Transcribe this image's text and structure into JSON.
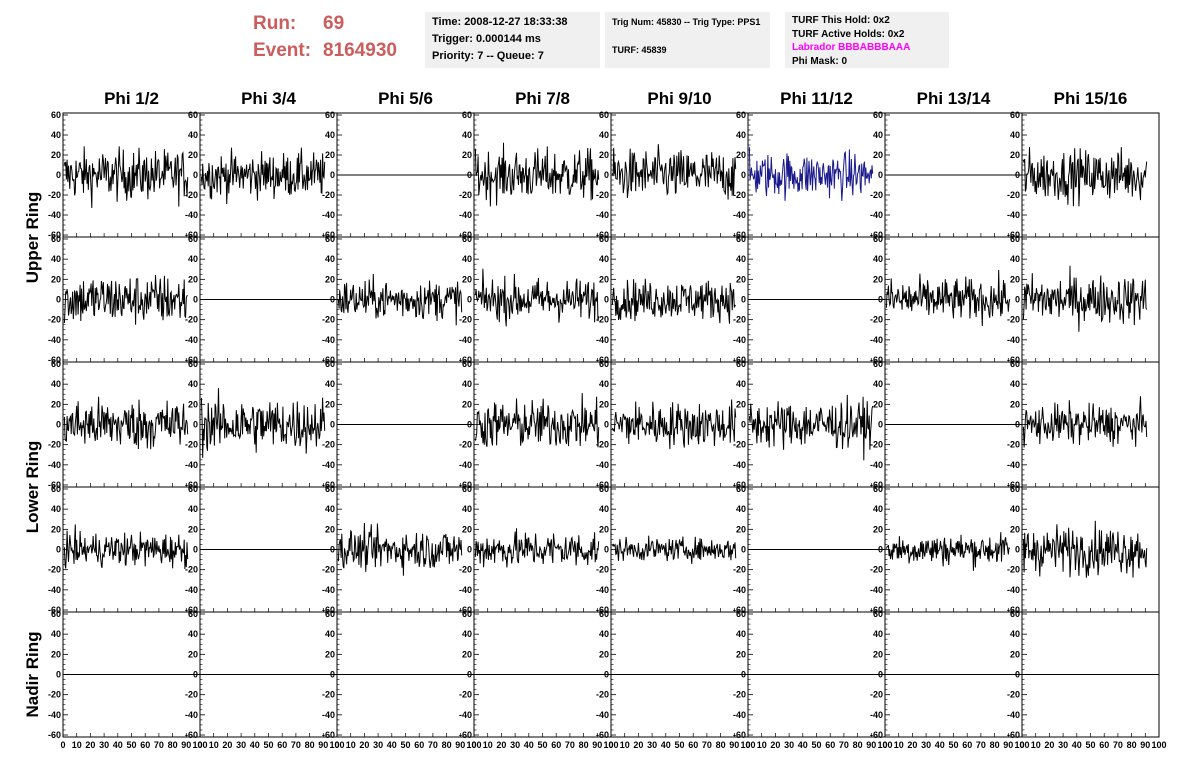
{
  "header": {
    "run_label": "Run:",
    "run_value": "69",
    "event_label": "Event:",
    "event_value": "8164930",
    "time": "Time: 2008-12-27 18:33:38",
    "trigger": "Trigger: 0.000144 ms",
    "priority": "Priority: 7 -- Queue: 7",
    "trig_num": "Trig Num: 45830 -- Trig Type: PPS1",
    "turf": "TURF: 45839",
    "turf_this_hold": "TURF This Hold: 0x2",
    "turf_active_holds": "TURF Active Holds: 0x2",
    "labrador": "Labrador BBBABBBAAA",
    "phi_mask": "Phi Mask: 0"
  },
  "columns": [
    "Phi 1/2",
    "Phi 3/4",
    "Phi 5/6",
    "Phi 7/8",
    "Phi 9/10",
    "Phi 11/12",
    "Phi 13/14",
    "Phi 15/16"
  ],
  "ring_labels": [
    "Upper Ring",
    "Lower Ring",
    "Nadir Ring"
  ],
  "y_ticks": [
    "60",
    "40",
    "20",
    "0",
    "-20",
    "-40",
    "-60"
  ],
  "x_ticks": [
    "0",
    "10",
    "20",
    "30",
    "40",
    "50",
    "60",
    "70",
    "80",
    "90",
    "100"
  ],
  "colors": {
    "run_text": "#cd5c5c",
    "labrador": "#ff00ff",
    "highlight_trace": "#1a1a8c",
    "trace": "#000000",
    "panel_bg": "#f0f0f0"
  },
  "chart_data": {
    "type": "line",
    "xlim": [
      0,
      100
    ],
    "ylim": [
      -60,
      60
    ],
    "grid": false,
    "rows": 5,
    "cols": 8,
    "amplitude": [
      [
        18,
        16,
        0,
        18,
        18,
        16,
        0,
        18
      ],
      [
        18,
        0,
        14,
        15,
        14,
        0,
        15,
        17
      ],
      [
        18,
        19,
        0,
        17,
        16,
        17,
        0,
        14
      ],
      [
        12,
        0,
        14,
        13,
        8,
        0,
        11,
        17
      ],
      [
        0,
        0,
        0,
        0,
        0,
        0,
        0,
        0
      ]
    ],
    "highlight": [
      [
        0,
        5
      ]
    ]
  }
}
